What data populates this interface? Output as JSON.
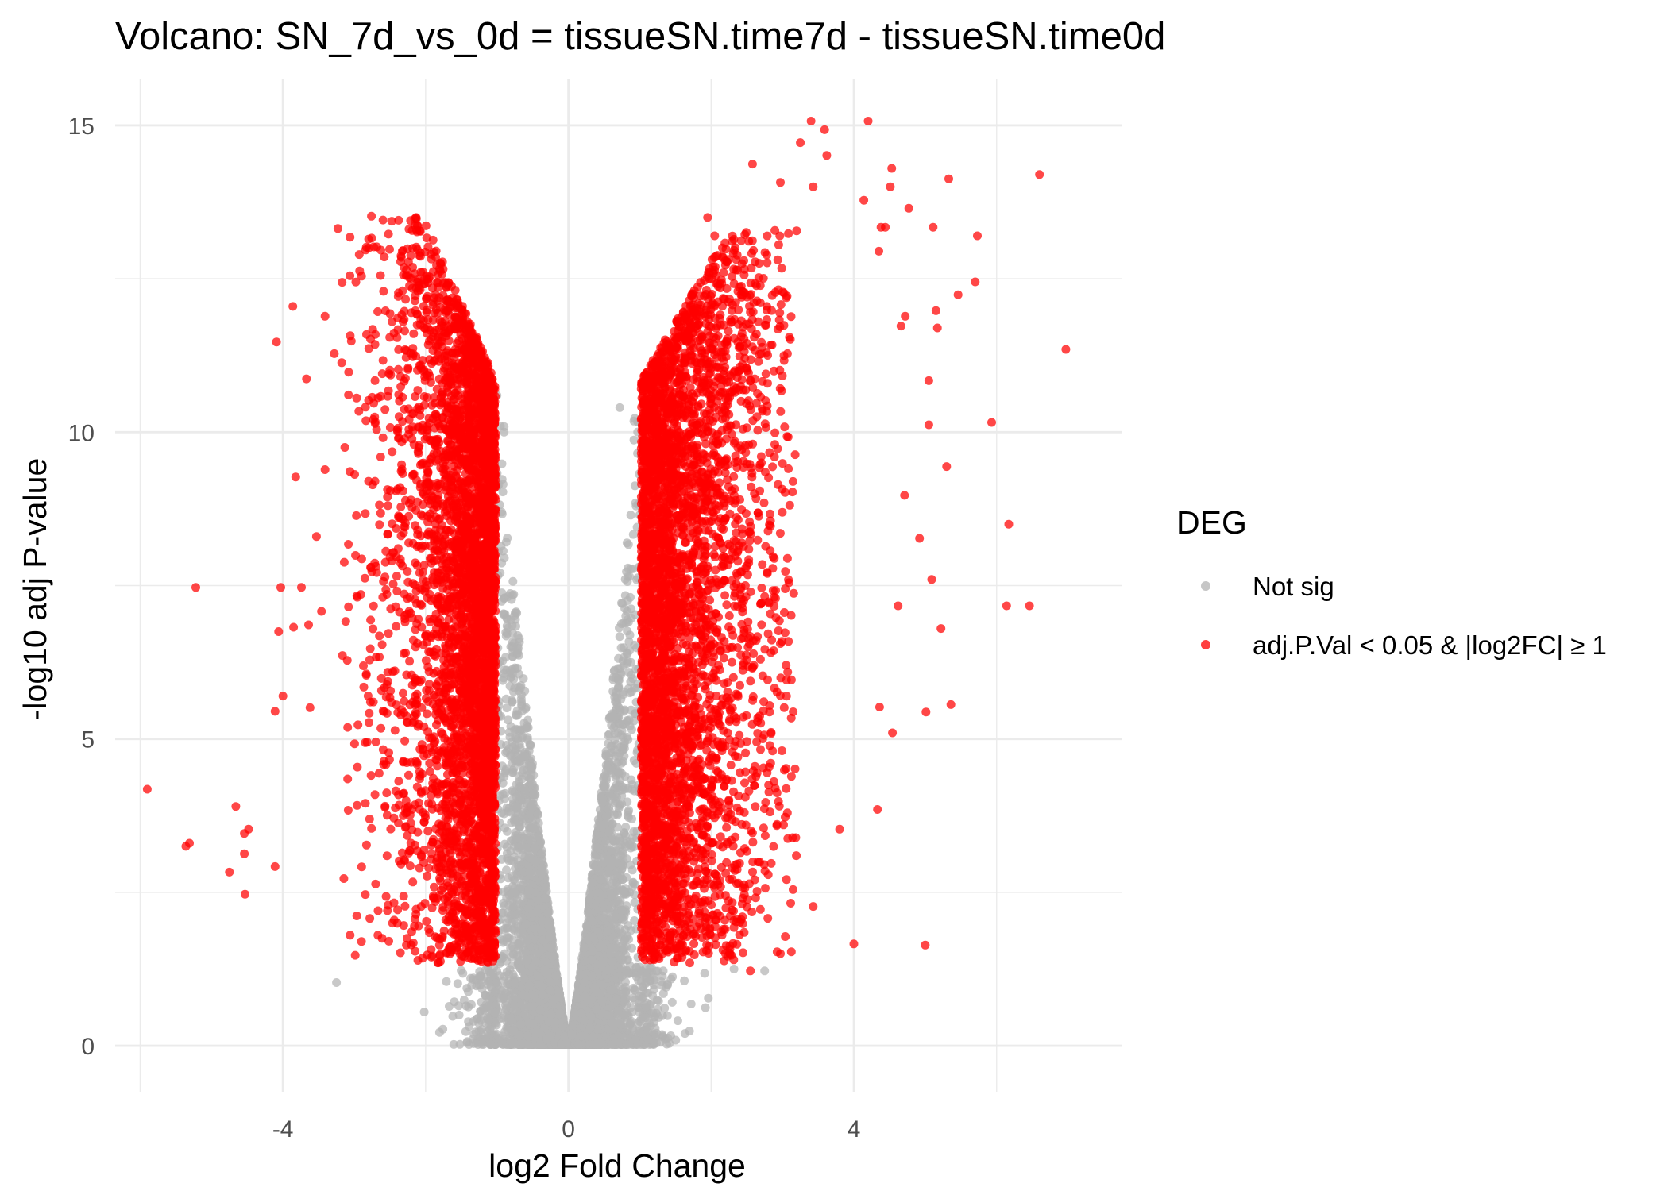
{
  "chart_data": {
    "type": "scatter",
    "title": "Volcano: SN_7d_vs_0d = tissueSN.time7d - tissueSN.time0d",
    "xlabel": "log2 Fold Change",
    "ylabel": "-log10 adj P-value",
    "xlim": [
      -6.35,
      7.75
    ],
    "ylim": [
      -0.75,
      15.75
    ],
    "x_ticks": [
      -4,
      0,
      4
    ],
    "x_tick_labels": [
      "-4",
      "0",
      "4"
    ],
    "y_ticks": [
      0,
      5,
      10,
      15
    ],
    "y_tick_labels": [
      "0",
      "5",
      "10",
      "15"
    ],
    "grid": true,
    "legend": {
      "title": "DEG",
      "placement": "right",
      "entries": [
        {
          "label": "Not sig",
          "color": "#B3B3B3"
        },
        {
          "label": "adj.P.Val < 0.05 & |log2FC| ≥ 1",
          "color": "#FF0000"
        }
      ]
    },
    "thresholds": {
      "abs_log2fc": 1,
      "adj_p": 0.05
    },
    "series": [
      {
        "name": "Not sig",
        "color": "#B3B3B3",
        "points": [
          [
            -3.25,
            1.03
          ],
          [
            -2.02,
            0.55
          ],
          [
            -1.62,
            0.48
          ],
          [
            2.75,
            1.22
          ],
          [
            2.32,
            1.25
          ],
          [
            1.92,
            0.62
          ],
          [
            1.72,
            0.68
          ],
          [
            0.72,
            10.4
          ],
          [
            -1.0,
            10.6
          ],
          [
            -0.9,
            10.0
          ]
        ]
      },
      {
        "name": "adj.P.Val < 0.05 & |log2FC| ≥ 1",
        "color": "#FF0000",
        "points": [
          [
            -5.9,
            4.18
          ],
          [
            -5.36,
            3.25
          ],
          [
            -5.31,
            3.3
          ],
          [
            -5.22,
            7.47
          ],
          [
            -4.75,
            2.83
          ],
          [
            -4.66,
            3.9
          ],
          [
            -4.54,
            3.13
          ],
          [
            -4.53,
            2.47
          ],
          [
            -4.54,
            3.46
          ],
          [
            -4.48,
            3.53
          ],
          [
            -4.09,
            11.47
          ],
          [
            -4.11,
            2.92
          ],
          [
            -4.11,
            5.45
          ],
          [
            -4.0,
            5.7
          ],
          [
            -4.03,
            7.47
          ],
          [
            -4.06,
            6.75
          ],
          [
            -3.86,
            12.05
          ],
          [
            -3.82,
            9.27
          ],
          [
            -3.74,
            7.47
          ],
          [
            -3.85,
            6.82
          ],
          [
            -3.67,
            10.87
          ],
          [
            -3.64,
            6.86
          ],
          [
            -3.62,
            5.51
          ],
          [
            -3.53,
            8.3
          ],
          [
            -3.46,
            7.08
          ],
          [
            -3.41,
            11.89
          ],
          [
            -3.41,
            9.39
          ],
          [
            -3.23,
            13.32
          ],
          [
            -3.28,
            11.28
          ],
          [
            -3.06,
            12.55
          ],
          [
            -3.14,
            7.88
          ],
          [
            -2.76,
            13.52
          ],
          [
            -2.13,
            13.48
          ],
          [
            -2.34,
            12.85
          ],
          [
            -1.99,
            12.55
          ],
          [
            6.97,
            11.35
          ],
          [
            6.6,
            14.2
          ],
          [
            6.46,
            7.17
          ],
          [
            6.14,
            7.17
          ],
          [
            6.17,
            8.5
          ],
          [
            5.93,
            10.16
          ],
          [
            5.73,
            13.2
          ],
          [
            5.7,
            12.45
          ],
          [
            5.46,
            12.24
          ],
          [
            5.33,
            14.13
          ],
          [
            5.36,
            5.56
          ],
          [
            5.22,
            6.8
          ],
          [
            5.3,
            9.44
          ],
          [
            5.15,
            11.98
          ],
          [
            5.17,
            11.7
          ],
          [
            5.11,
            13.34
          ],
          [
            5.09,
            7.6
          ],
          [
            5.05,
            10.12
          ],
          [
            5.05,
            10.84
          ],
          [
            5.0,
            1.64
          ],
          [
            5.01,
            5.44
          ],
          [
            4.92,
            8.27
          ],
          [
            4.77,
            13.65
          ],
          [
            4.72,
            11.89
          ],
          [
            4.66,
            11.73
          ],
          [
            4.71,
            8.97
          ],
          [
            4.62,
            7.17
          ],
          [
            4.2,
            15.07
          ],
          [
            3.4,
            15.07
          ],
          [
            3.59,
            14.93
          ],
          [
            3.25,
            14.72
          ],
          [
            3.62,
            14.51
          ],
          [
            2.58,
            14.37
          ],
          [
            3.43,
            14.0
          ],
          [
            2.97,
            14.07
          ],
          [
            4.53,
            14.3
          ],
          [
            4.51,
            14.0
          ],
          [
            4.14,
            13.78
          ],
          [
            4.38,
            13.34
          ],
          [
            4.44,
            13.34
          ],
          [
            4.35,
            12.95
          ],
          [
            4.0,
            1.66
          ],
          [
            3.43,
            2.27
          ],
          [
            2.97,
            1.5
          ],
          [
            2.55,
            1.22
          ],
          [
            4.36,
            5.52
          ],
          [
            4.54,
            5.1
          ],
          [
            4.33,
            3.85
          ],
          [
            3.8,
            3.53
          ],
          [
            1.95,
            13.5
          ],
          [
            2.05,
            13.2
          ]
        ]
      }
    ]
  }
}
